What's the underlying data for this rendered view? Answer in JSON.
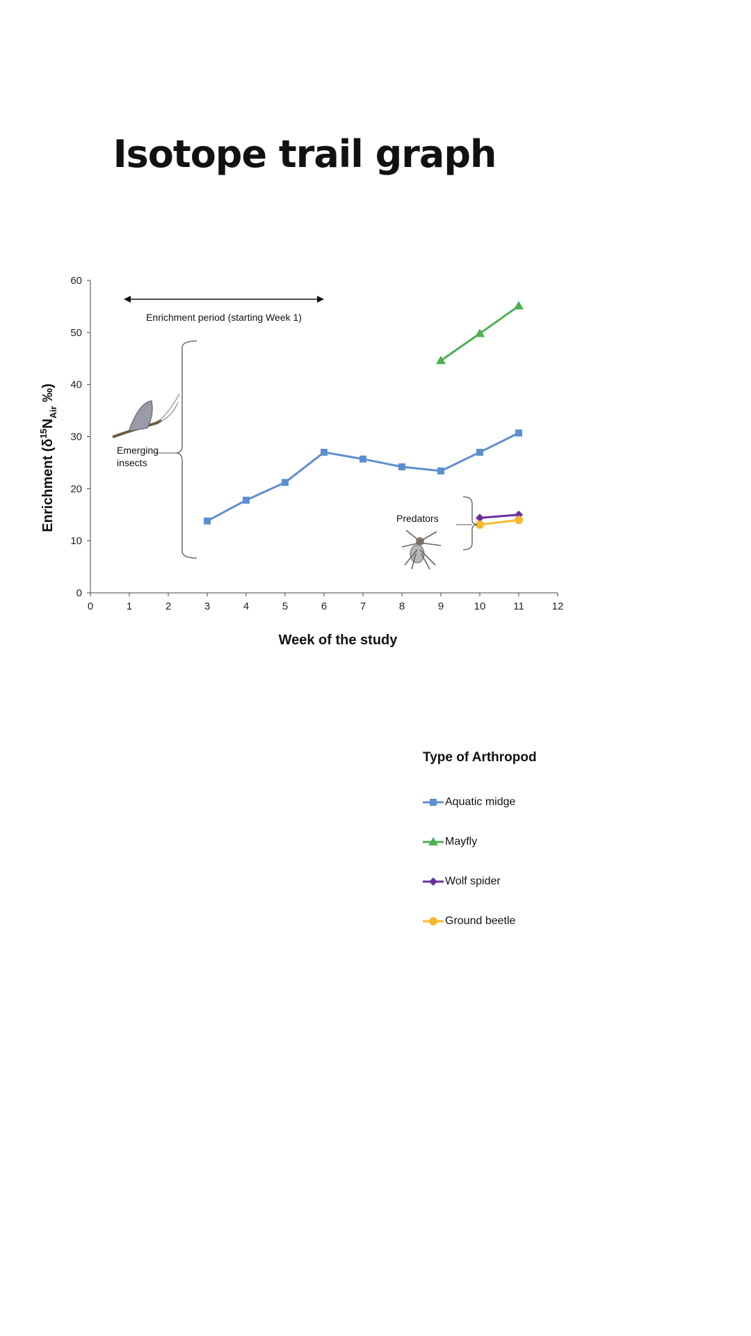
{
  "chart_data": {
    "type": "line",
    "title": "Isotope trail graph",
    "xlabel": "Week of the study",
    "ylabel": "Enrichment (δ15N_Air ‰)",
    "ylabel_parts": {
      "main": "Enrichment (δ",
      "sup": "15",
      "n": "N",
      "sub": "Air",
      "end": " ‰)"
    },
    "xlim": [
      0,
      12
    ],
    "ylim": [
      0,
      60
    ],
    "xticks": [
      0,
      1,
      2,
      3,
      4,
      5,
      6,
      7,
      8,
      9,
      10,
      11,
      12
    ],
    "yticks": [
      0,
      10,
      20,
      30,
      40,
      50,
      60
    ],
    "grid": false,
    "legend_title": "Type of Arthropod",
    "legend_placement": "bottom-right",
    "series": [
      {
        "name": "Aquatic midge",
        "color": "#5b8fd0",
        "marker": "square",
        "x": [
          3,
          4,
          5,
          6,
          7,
          8,
          9,
          10,
          11
        ],
        "y": [
          13.8,
          17.8,
          21.2,
          27.0,
          25.7,
          24.2,
          23.4,
          27.0,
          30.7
        ]
      },
      {
        "name": "Mayfly",
        "color": "#4caf50",
        "marker": "triangle",
        "x": [
          9,
          10,
          11
        ],
        "y": [
          44.6,
          49.8,
          55.1
        ]
      },
      {
        "name": "Wolf spider",
        "color": "#6a2fa0",
        "marker": "diamond",
        "x": [
          10,
          11
        ],
        "y": [
          14.4,
          15.0
        ]
      },
      {
        "name": "Ground beetle",
        "color": "#f5b92e",
        "marker": "circle",
        "x": [
          10,
          11
        ],
        "y": [
          13.1,
          14.0
        ]
      }
    ],
    "annotations": {
      "enrichment": "Enrichment period (starting Week 1)",
      "emerging": [
        "Emerging",
        "insects"
      ],
      "predators": "Predators"
    }
  }
}
